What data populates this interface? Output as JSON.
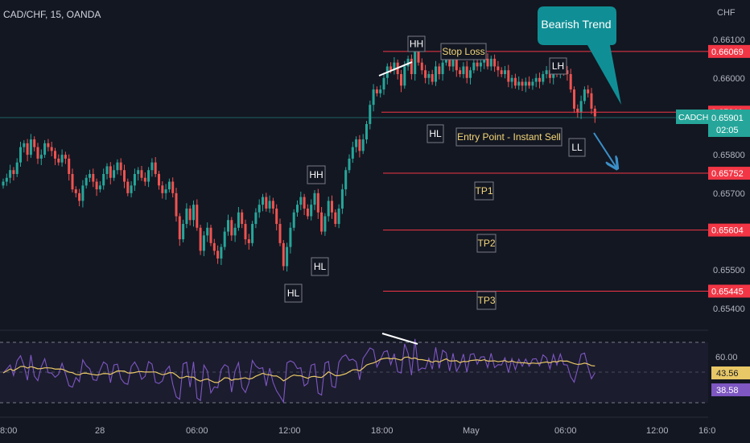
{
  "header": {
    "symbol_title": "CAD/CHF, 15, OANDA",
    "currency": "CHF"
  },
  "colors": {
    "bg": "#131722",
    "up": "#26a69a",
    "down": "#ef5350",
    "level": "#f23645",
    "accent": "#26a69a",
    "callout": "#0f8f95",
    "arrow": "#3b8fc7",
    "rsi": "#7e57c2",
    "rsi_ma": "#e8c766",
    "label_yellow": "#f5d778"
  },
  "chart_data": [
    {
      "type": "candlestick",
      "title": "CAD/CHF, 15, OANDA",
      "x_ticks": [
        "8:00",
        "28",
        "06:00",
        "12:00",
        "18:00",
        "May",
        "06:00",
        "12:00",
        "16:0"
      ],
      "y_ticks": [
        "0.66100",
        "0.66000",
        "0.65800",
        "0.65700",
        "0.65500",
        "0.65400"
      ],
      "ylim": [
        0.6536,
        0.6614
      ],
      "grid": false,
      "candles_close": [
        0.6573,
        0.6574,
        0.6576,
        0.6575,
        0.6578,
        0.6582,
        0.6583,
        0.658,
        0.6584,
        0.6582,
        0.6579,
        0.658,
        0.6583,
        0.6582,
        0.6581,
        0.6579,
        0.6578,
        0.658,
        0.6579,
        0.6575,
        0.6571,
        0.657,
        0.6568,
        0.6572,
        0.6574,
        0.6575,
        0.6573,
        0.6571,
        0.6572,
        0.6575,
        0.6577,
        0.6574,
        0.6576,
        0.6578,
        0.6576,
        0.6573,
        0.657,
        0.6572,
        0.6575,
        0.6576,
        0.6574,
        0.6573,
        0.6576,
        0.6578,
        0.6575,
        0.6572,
        0.657,
        0.6571,
        0.6573,
        0.657,
        0.6564,
        0.6558,
        0.6562,
        0.6566,
        0.6563,
        0.6567,
        0.6561,
        0.6555,
        0.6559,
        0.6561,
        0.6557,
        0.6555,
        0.6553,
        0.6556,
        0.656,
        0.6563,
        0.6559,
        0.6561,
        0.6565,
        0.6562,
        0.6558,
        0.6557,
        0.6562,
        0.6565,
        0.6567,
        0.6569,
        0.6566,
        0.6568,
        0.6566,
        0.6562,
        0.6557,
        0.6551,
        0.6556,
        0.6561,
        0.6565,
        0.6567,
        0.6569,
        0.6566,
        0.6564,
        0.6567,
        0.657,
        0.6565,
        0.656,
        0.6564,
        0.6568,
        0.6565,
        0.6562,
        0.6566,
        0.6571,
        0.6576,
        0.6579,
        0.6582,
        0.6584,
        0.6581,
        0.6584,
        0.6588,
        0.6593,
        0.6597,
        0.6596,
        0.6597,
        0.66,
        0.6603,
        0.6602,
        0.6604,
        0.6601,
        0.6598,
        0.6603,
        0.6605,
        0.6601,
        0.6607,
        0.6604,
        0.6602,
        0.66,
        0.6601,
        0.6599,
        0.6603,
        0.6601,
        0.6604,
        0.6606,
        0.6603,
        0.6605,
        0.6602,
        0.6601,
        0.6603,
        0.66,
        0.6602,
        0.6604,
        0.6603,
        0.6604,
        0.6605,
        0.6603,
        0.6605,
        0.6603,
        0.6602,
        0.6601,
        0.6602,
        0.6599,
        0.66,
        0.6598,
        0.6599,
        0.6598,
        0.6599,
        0.6598,
        0.6599,
        0.66,
        0.6599,
        0.6601,
        0.6602,
        0.66,
        0.6602,
        0.6601,
        0.6603,
        0.6602,
        0.6601,
        0.6597,
        0.6592,
        0.6591,
        0.6594,
        0.6597,
        0.6596,
        0.6592,
        0.659
      ],
      "horizontal_levels": [
        {
          "name": "Stop Loss",
          "value": 0.66069,
          "label": "0.66069"
        },
        {
          "name": "Entry",
          "value": 0.65911,
          "label": "0.65911"
        },
        {
          "name": "TP1",
          "value": 0.65752,
          "label": "0.65752"
        },
        {
          "name": "TP2",
          "value": 0.65604,
          "label": "0.65604"
        },
        {
          "name": "TP3",
          "value": 0.65445,
          "label": "0.65445"
        }
      ],
      "current_price": {
        "symbol": "CADCHF",
        "value": "0.65901",
        "countdown": "02:05"
      },
      "structure_labels": [
        "HH",
        "Stop Loss",
        "LH",
        "HL",
        "Entry Point - Instant Sell",
        "LL",
        "HH",
        "HL",
        "HL",
        "TP1",
        "TP2",
        "TP3"
      ],
      "callout": "Bearish Trend"
    },
    {
      "type": "line",
      "title": "",
      "y_ticks": [
        "60.00"
      ],
      "series": [
        {
          "name": "",
          "value_label": "43.56"
        },
        {
          "name": "",
          "value_label": "38.58"
        }
      ]
    }
  ]
}
